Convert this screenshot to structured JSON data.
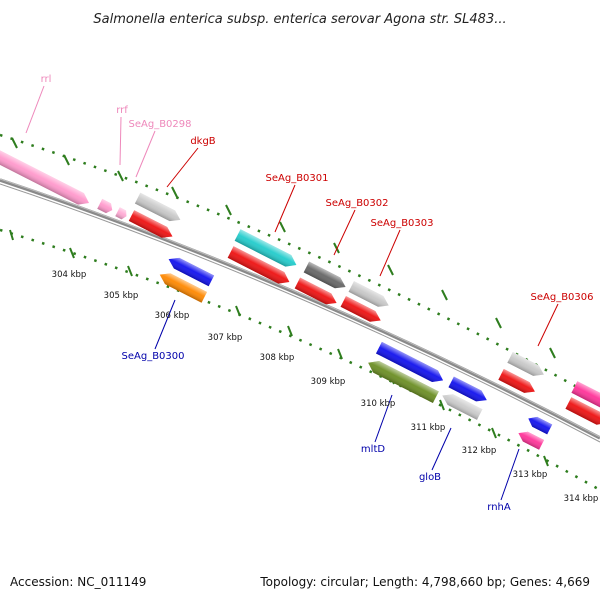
{
  "title": "Salmonella enterica subsp. enterica serovar Agona str. SL483...",
  "footer": {
    "accession": "Accession: NC_011149",
    "summary": "Topology: circular; Length: 4,798,660 bp; Genes: 4,669"
  },
  "colors": {
    "backbone": "#8a8a8a",
    "tick": "#2e7d1e",
    "label_red": "#cc0000",
    "label_blue": "#0000aa",
    "label_pink": "#ee88bb"
  },
  "scale_ticks": [
    {
      "label": "304 kbp"
    },
    {
      "label": "305 kbp"
    },
    {
      "label": "306 kbp"
    },
    {
      "label": "307 kbp"
    },
    {
      "label": "308 kbp"
    },
    {
      "label": "309 kbp"
    },
    {
      "label": "310 kbp"
    },
    {
      "label": "311 kbp"
    },
    {
      "label": "312 kbp"
    },
    {
      "label": "313 kbp"
    },
    {
      "label": "314 kbp"
    }
  ],
  "gene_labels": [
    {
      "name": "rrl",
      "color": "pink"
    },
    {
      "name": "rrf",
      "color": "pink"
    },
    {
      "name": "SeAg_B0298",
      "color": "pink"
    },
    {
      "name": "dkgB",
      "color": "red"
    },
    {
      "name": "SeAg_B0301",
      "color": "red"
    },
    {
      "name": "SeAg_B0302",
      "color": "red"
    },
    {
      "name": "SeAg_B0303",
      "color": "red"
    },
    {
      "name": "SeAg_B0306",
      "color": "red"
    },
    {
      "name": "SeAg_B0300",
      "color": "blue"
    },
    {
      "name": "mltD",
      "color": "blue"
    },
    {
      "name": "gloB",
      "color": "blue"
    },
    {
      "name": "rnhA",
      "color": "blue"
    }
  ],
  "features": [
    {
      "id": "rrl",
      "strand": "forward",
      "color": "#ff99cc"
    },
    {
      "id": "rrf",
      "strand": "forward",
      "color": "#ff99cc"
    },
    {
      "id": "SeAg_B0298",
      "strand": "forward",
      "color": "#ffaad4"
    },
    {
      "id": "dkgB-track",
      "strand": "forward",
      "color": "#c8c8c8"
    },
    {
      "id": "dkgB-cds",
      "strand": "forward",
      "color": "#ee1111"
    },
    {
      "id": "SeAg_B0301-track",
      "strand": "forward",
      "color": "#22cccc"
    },
    {
      "id": "SeAg_B0301-cds",
      "strand": "forward",
      "color": "#ee1111"
    },
    {
      "id": "SeAg_B0302-track",
      "strand": "forward",
      "color": "#666666"
    },
    {
      "id": "SeAg_B0302-cds",
      "strand": "forward",
      "color": "#ee1111"
    },
    {
      "id": "SeAg_B0303-track",
      "strand": "forward",
      "color": "#c8c8c8"
    },
    {
      "id": "SeAg_B0303-cds",
      "strand": "forward",
      "color": "#ee1111"
    },
    {
      "id": "SeAg_B0306-track",
      "strand": "forward",
      "color": "#c8c8c8"
    },
    {
      "id": "SeAg_B0306-cds",
      "strand": "forward",
      "color": "#ee1111"
    },
    {
      "id": "edge-top",
      "strand": "forward",
      "color": "#ff3399"
    },
    {
      "id": "edge-cds",
      "strand": "forward",
      "color": "#ee1111"
    },
    {
      "id": "SeAg_B0300-blue",
      "strand": "reverse",
      "color": "#1111ee"
    },
    {
      "id": "SeAg_B0300-orange",
      "strand": "reverse",
      "color": "#ff8800"
    },
    {
      "id": "mltD-blue",
      "strand": "forward",
      "color": "#1111ee"
    },
    {
      "id": "mltD-green",
      "strand": "reverse",
      "color": "#6b8e23"
    },
    {
      "id": "gloB-blue",
      "strand": "forward",
      "color": "#1111ee"
    },
    {
      "id": "gloB-gray",
      "strand": "reverse",
      "color": "#cccccc"
    },
    {
      "id": "rnhA-blue",
      "strand": "reverse",
      "color": "#1111ee"
    },
    {
      "id": "rnhA-pink",
      "strand": "reverse",
      "color": "#ff3399"
    }
  ]
}
